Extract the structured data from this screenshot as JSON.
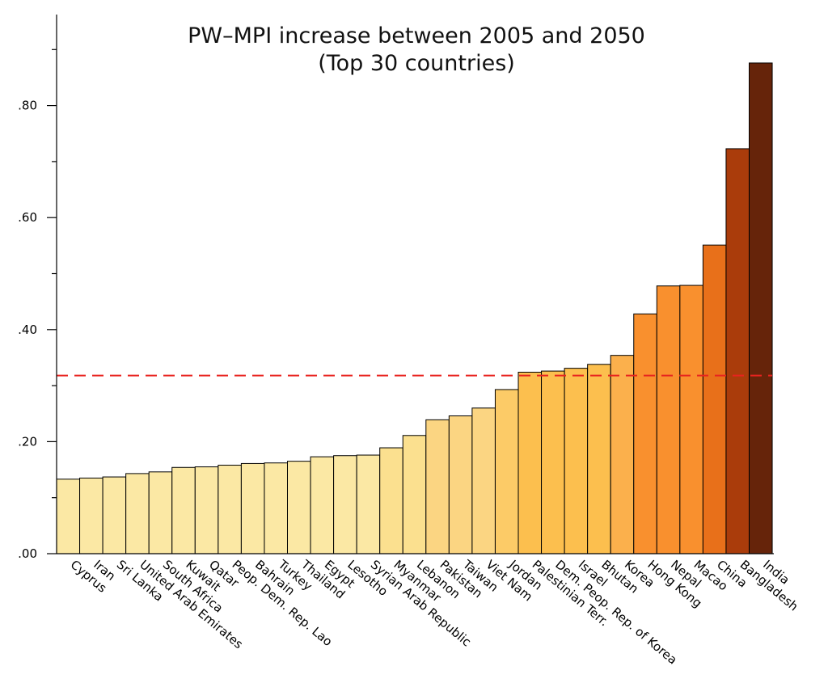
{
  "chart_data": {
    "type": "bar",
    "title": "PW–MPI increase between 2005 and 2050",
    "subtitle": "(Top 30 countries)",
    "xlabel": "",
    "ylabel": "",
    "ylim": [
      0,
      0.9
    ],
    "yticks": [
      {
        "value": 0.0,
        "label": ".00"
      },
      {
        "value": 0.2,
        "label": ".20"
      },
      {
        "value": 0.4,
        "label": ".40"
      },
      {
        "value": 0.6,
        "label": ".60"
      },
      {
        "value": 0.8,
        "label": ".80"
      }
    ],
    "reference_line": {
      "value": 0.318,
      "color": "#e8231f",
      "style": "dashed"
    },
    "grid": false,
    "categories": [
      "Cyprus",
      "Iran",
      "Sri Lanka",
      "United Arab Emirates",
      "South Africa",
      "Kuwait",
      "Qatar",
      "Peop. Dem. Rep. Lao",
      "Bahrain",
      "Turkey",
      "Thailand",
      "Egypt",
      "Lesotho",
      "Syrian Arab Republic",
      "Myanmar",
      "Lebanon",
      "Pakistan",
      "Taiwan",
      "Viet Nam",
      "Jordan",
      "Palestinian Terr.",
      "Dem. Peop. Rep. of Korea",
      "Israel",
      "Bhutan",
      "Korea",
      "Hong Kong",
      "Nepal",
      "Macao",
      "China",
      "Bangladesh",
      "India"
    ],
    "values": [
      0.133,
      0.135,
      0.137,
      0.143,
      0.146,
      0.154,
      0.155,
      0.158,
      0.161,
      0.162,
      0.165,
      0.173,
      0.175,
      0.176,
      0.189,
      0.211,
      0.239,
      0.246,
      0.26,
      0.293,
      0.324,
      0.326,
      0.331,
      0.338,
      0.354,
      0.428,
      0.478,
      0.479,
      0.551,
      0.723,
      0.876
    ],
    "colors": [
      "#fbe8a4",
      "#fbe8a4",
      "#fbe8a4",
      "#fbe8a4",
      "#fbe8a4",
      "#fbe8a4",
      "#fbe8a4",
      "#fbe8a4",
      "#fbe8a4",
      "#fbe8a4",
      "#fbe8a4",
      "#fbe8a4",
      "#fbe8a4",
      "#fbe8a4",
      "#fbe08f",
      "#fbe08f",
      "#fbd582",
      "#fbd582",
      "#fbd582",
      "#fccb67",
      "#fcbf4e",
      "#fcbf4e",
      "#fcbf4e",
      "#fcbf4e",
      "#fbb04c",
      "#f9902e",
      "#f9902e",
      "#f9902e",
      "#e8701a",
      "#aa3c0b",
      "#66240a"
    ]
  }
}
